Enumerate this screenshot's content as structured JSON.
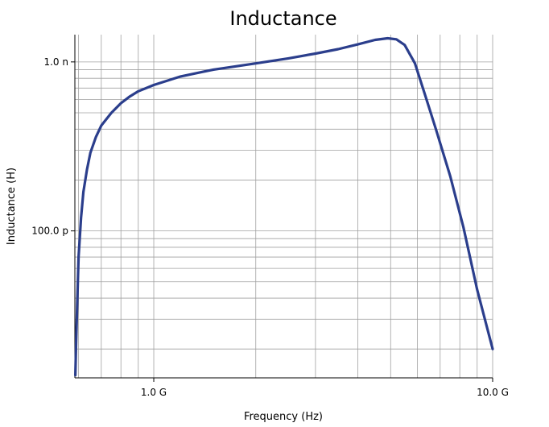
{
  "chart_data": {
    "type": "line",
    "title": "Inductance",
    "xlabel": "Frequency (Hz)",
    "ylabel": "Inductance (H)",
    "xscale": "log",
    "yscale": "log",
    "xlim": [
      585000000.0,
      10000000000.0
    ],
    "ylim": [
      1.35e-11,
      1.45e-09
    ],
    "grid": true,
    "x_ticks": [
      {
        "value": 1000000000.0,
        "label": "1.0 G"
      },
      {
        "value": 10000000000.0,
        "label": "10.0 G"
      }
    ],
    "y_ticks": [
      {
        "value": 1e-10,
        "label": "100.0 p"
      },
      {
        "value": 1e-09,
        "label": "1.0 n"
      }
    ],
    "line_color": "#2b3e8c",
    "series": [
      {
        "x": [
          587000000.0,
          590000000.0,
          595000000.0,
          600000000.0,
          610000000.0,
          620000000.0,
          635000000.0,
          650000000.0,
          675000000.0,
          700000000.0,
          750000000.0,
          800000000.0,
          850000000.0,
          900000000.0,
          1000000000.0,
          1200000000.0,
          1500000000.0,
          2000000000.0,
          2500000000.0,
          3000000000.0,
          3500000000.0,
          4000000000.0,
          4500000000.0,
          4900000000.0,
          5200000000.0,
          5500000000.0,
          5900000000.0,
          6300000000.0,
          6800000000.0,
          7500000000.0,
          8200000000.0,
          9000000000.0,
          10000000000.0
        ],
        "y": [
          1.4e-11,
          2.2e-11,
          4e-11,
          7e-11,
          1.2e-10,
          1.7e-10,
          2.3e-10,
          2.9e-10,
          3.6e-10,
          4.2e-10,
          5e-10,
          5.7e-10,
          6.25e-10,
          6.7e-10,
          7.3e-10,
          8.2e-10,
          9e-10,
          9.8e-10,
          1.05e-09,
          1.12e-09,
          1.19e-09,
          1.27e-09,
          1.35e-09,
          1.38e-09,
          1.36e-09,
          1.26e-09,
          9.8e-10,
          6.5e-10,
          4e-10,
          2.1e-10,
          1.05e-10,
          4.5e-11,
          2e-11
        ]
      }
    ]
  }
}
